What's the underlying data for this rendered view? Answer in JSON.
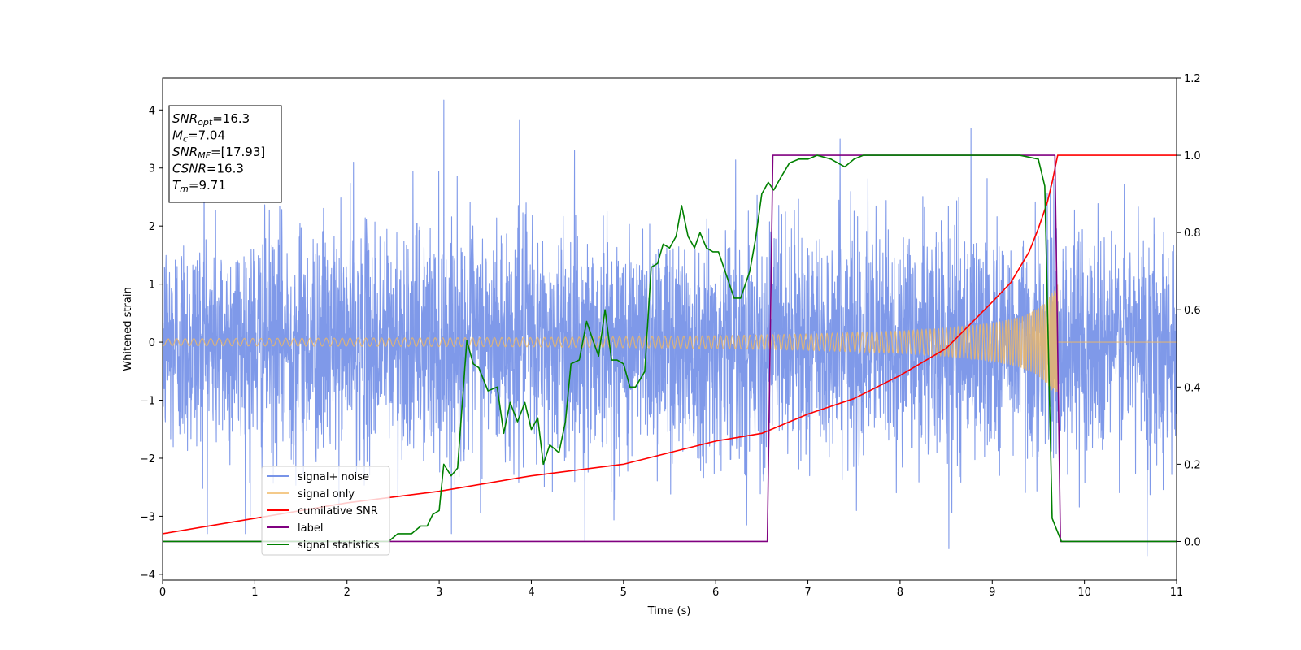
{
  "chart_data": {
    "type": "line",
    "xlabel": "Time (s)",
    "ylabel": "Whitened strain",
    "xlim": [
      0,
      11
    ],
    "ylim_left": [
      -4.1,
      4.55
    ],
    "ylim_right": [
      -0.1,
      1.2
    ],
    "xticks": [
      "0",
      "1",
      "2",
      "3",
      "4",
      "5",
      "6",
      "7",
      "8",
      "9",
      "10",
      "11"
    ],
    "yticks_left": [
      "−4",
      "−3",
      "−2",
      "−1",
      "0",
      "1",
      "2",
      "3",
      "4"
    ],
    "yticks_right": [
      "0.0",
      "0.2",
      "0.4",
      "0.6",
      "0.8",
      "1.0",
      "1.2"
    ],
    "grid": false,
    "legend_position": "lower-left",
    "info_box": [
      {
        "base": "SNR",
        "sub": "opt",
        "rest": "=16.3"
      },
      {
        "base": "M",
        "sub": "c",
        "rest": "=7.04"
      },
      {
        "base": "SNR",
        "sub": "MF",
        "rest": "=[17.93]"
      },
      {
        "base": "CSNR",
        "sub": "",
        "rest": "=16.3"
      },
      {
        "base": "T",
        "sub": "m",
        "rest": "=9.71"
      }
    ],
    "series": [
      {
        "name": "signal+ noise",
        "axis": "left",
        "color": "#7894e8",
        "description": "whitened noise, approx. unit variance, spikes up to 4.17 at t=3.05",
        "notable_peaks": [
          [
            3.05,
            4.17
          ],
          [
            3.87,
            3.82
          ],
          [
            7.35,
            3.5
          ],
          [
            8.77,
            3.68
          ],
          [
            0.45,
            3.0
          ],
          [
            2.07,
            3.1
          ],
          [
            4.58,
            -3.42
          ],
          [
            8.53,
            -3.56
          ],
          [
            10.68,
            -3.68
          ],
          [
            0.95,
            -3.0
          ]
        ]
      },
      {
        "name": "signal only",
        "axis": "left",
        "color": "#f0b863",
        "envelope": {
          "x": [
            0,
            2,
            4,
            6,
            7,
            8,
            8.5,
            9,
            9.3,
            9.5,
            9.6,
            9.7
          ],
          "amp": [
            0.06,
            0.07,
            0.08,
            0.11,
            0.14,
            0.19,
            0.24,
            0.33,
            0.43,
            0.58,
            0.73,
            1.0
          ]
        },
        "merger_time": 9.71
      },
      {
        "name": "cumilative SNR",
        "axis": "right",
        "color": "#ff0000",
        "x": [
          0,
          0.5,
          1,
          2,
          3,
          4,
          5,
          6,
          6.5,
          7,
          7.5,
          8,
          8.5,
          9,
          9.2,
          9.4,
          9.5,
          9.6,
          9.65,
          9.71,
          11
        ],
        "values": [
          0.02,
          0.04,
          0.06,
          0.1,
          0.13,
          0.17,
          0.2,
          0.26,
          0.28,
          0.33,
          0.37,
          0.43,
          0.5,
          0.62,
          0.67,
          0.75,
          0.81,
          0.88,
          0.93,
          1.0,
          1.0
        ]
      },
      {
        "name": "label",
        "axis": "right",
        "color": "#800080",
        "x": [
          0,
          6.56,
          6.62,
          9.68,
          9.74,
          11
        ],
        "values": [
          0.0,
          0.0,
          1.0,
          1.0,
          0.0,
          0.0
        ]
      },
      {
        "name": "signal statistics",
        "axis": "right",
        "color": "#008000",
        "x": [
          0,
          2.45,
          2.55,
          2.7,
          2.8,
          2.87,
          2.93,
          3.0,
          3.05,
          3.13,
          3.2,
          3.3,
          3.37,
          3.43,
          3.53,
          3.63,
          3.7,
          3.77,
          3.85,
          3.93,
          4.0,
          4.07,
          4.13,
          4.2,
          4.3,
          4.37,
          4.43,
          4.52,
          4.6,
          4.67,
          4.73,
          4.8,
          4.87,
          4.93,
          5.0,
          5.07,
          5.13,
          5.23,
          5.3,
          5.37,
          5.43,
          5.5,
          5.57,
          5.63,
          5.7,
          5.77,
          5.83,
          5.9,
          5.97,
          6.03,
          6.13,
          6.2,
          6.27,
          6.37,
          6.43,
          6.5,
          6.57,
          6.63,
          6.7,
          6.8,
          6.9,
          7.0,
          7.1,
          7.25,
          7.4,
          7.5,
          7.6,
          7.7,
          7.9,
          8.2,
          8.5,
          9.0,
          9.3,
          9.5,
          9.57,
          9.65,
          9.75,
          11
        ],
        "values": [
          0.0,
          0.0,
          0.02,
          0.02,
          0.04,
          0.04,
          0.07,
          0.08,
          0.2,
          0.17,
          0.19,
          0.52,
          0.46,
          0.45,
          0.39,
          0.4,
          0.28,
          0.36,
          0.31,
          0.36,
          0.29,
          0.32,
          0.2,
          0.25,
          0.23,
          0.31,
          0.46,
          0.47,
          0.57,
          0.52,
          0.48,
          0.6,
          0.47,
          0.47,
          0.46,
          0.4,
          0.4,
          0.44,
          0.71,
          0.72,
          0.77,
          0.76,
          0.79,
          0.87,
          0.79,
          0.76,
          0.8,
          0.76,
          0.75,
          0.75,
          0.68,
          0.63,
          0.63,
          0.7,
          0.78,
          0.9,
          0.93,
          0.91,
          0.94,
          0.98,
          0.99,
          0.99,
          1.0,
          0.99,
          0.97,
          0.99,
          1.0,
          1.0,
          1.0,
          1.0,
          1.0,
          1.0,
          1.0,
          0.99,
          0.92,
          0.06,
          0.0,
          0.0
        ]
      }
    ]
  }
}
